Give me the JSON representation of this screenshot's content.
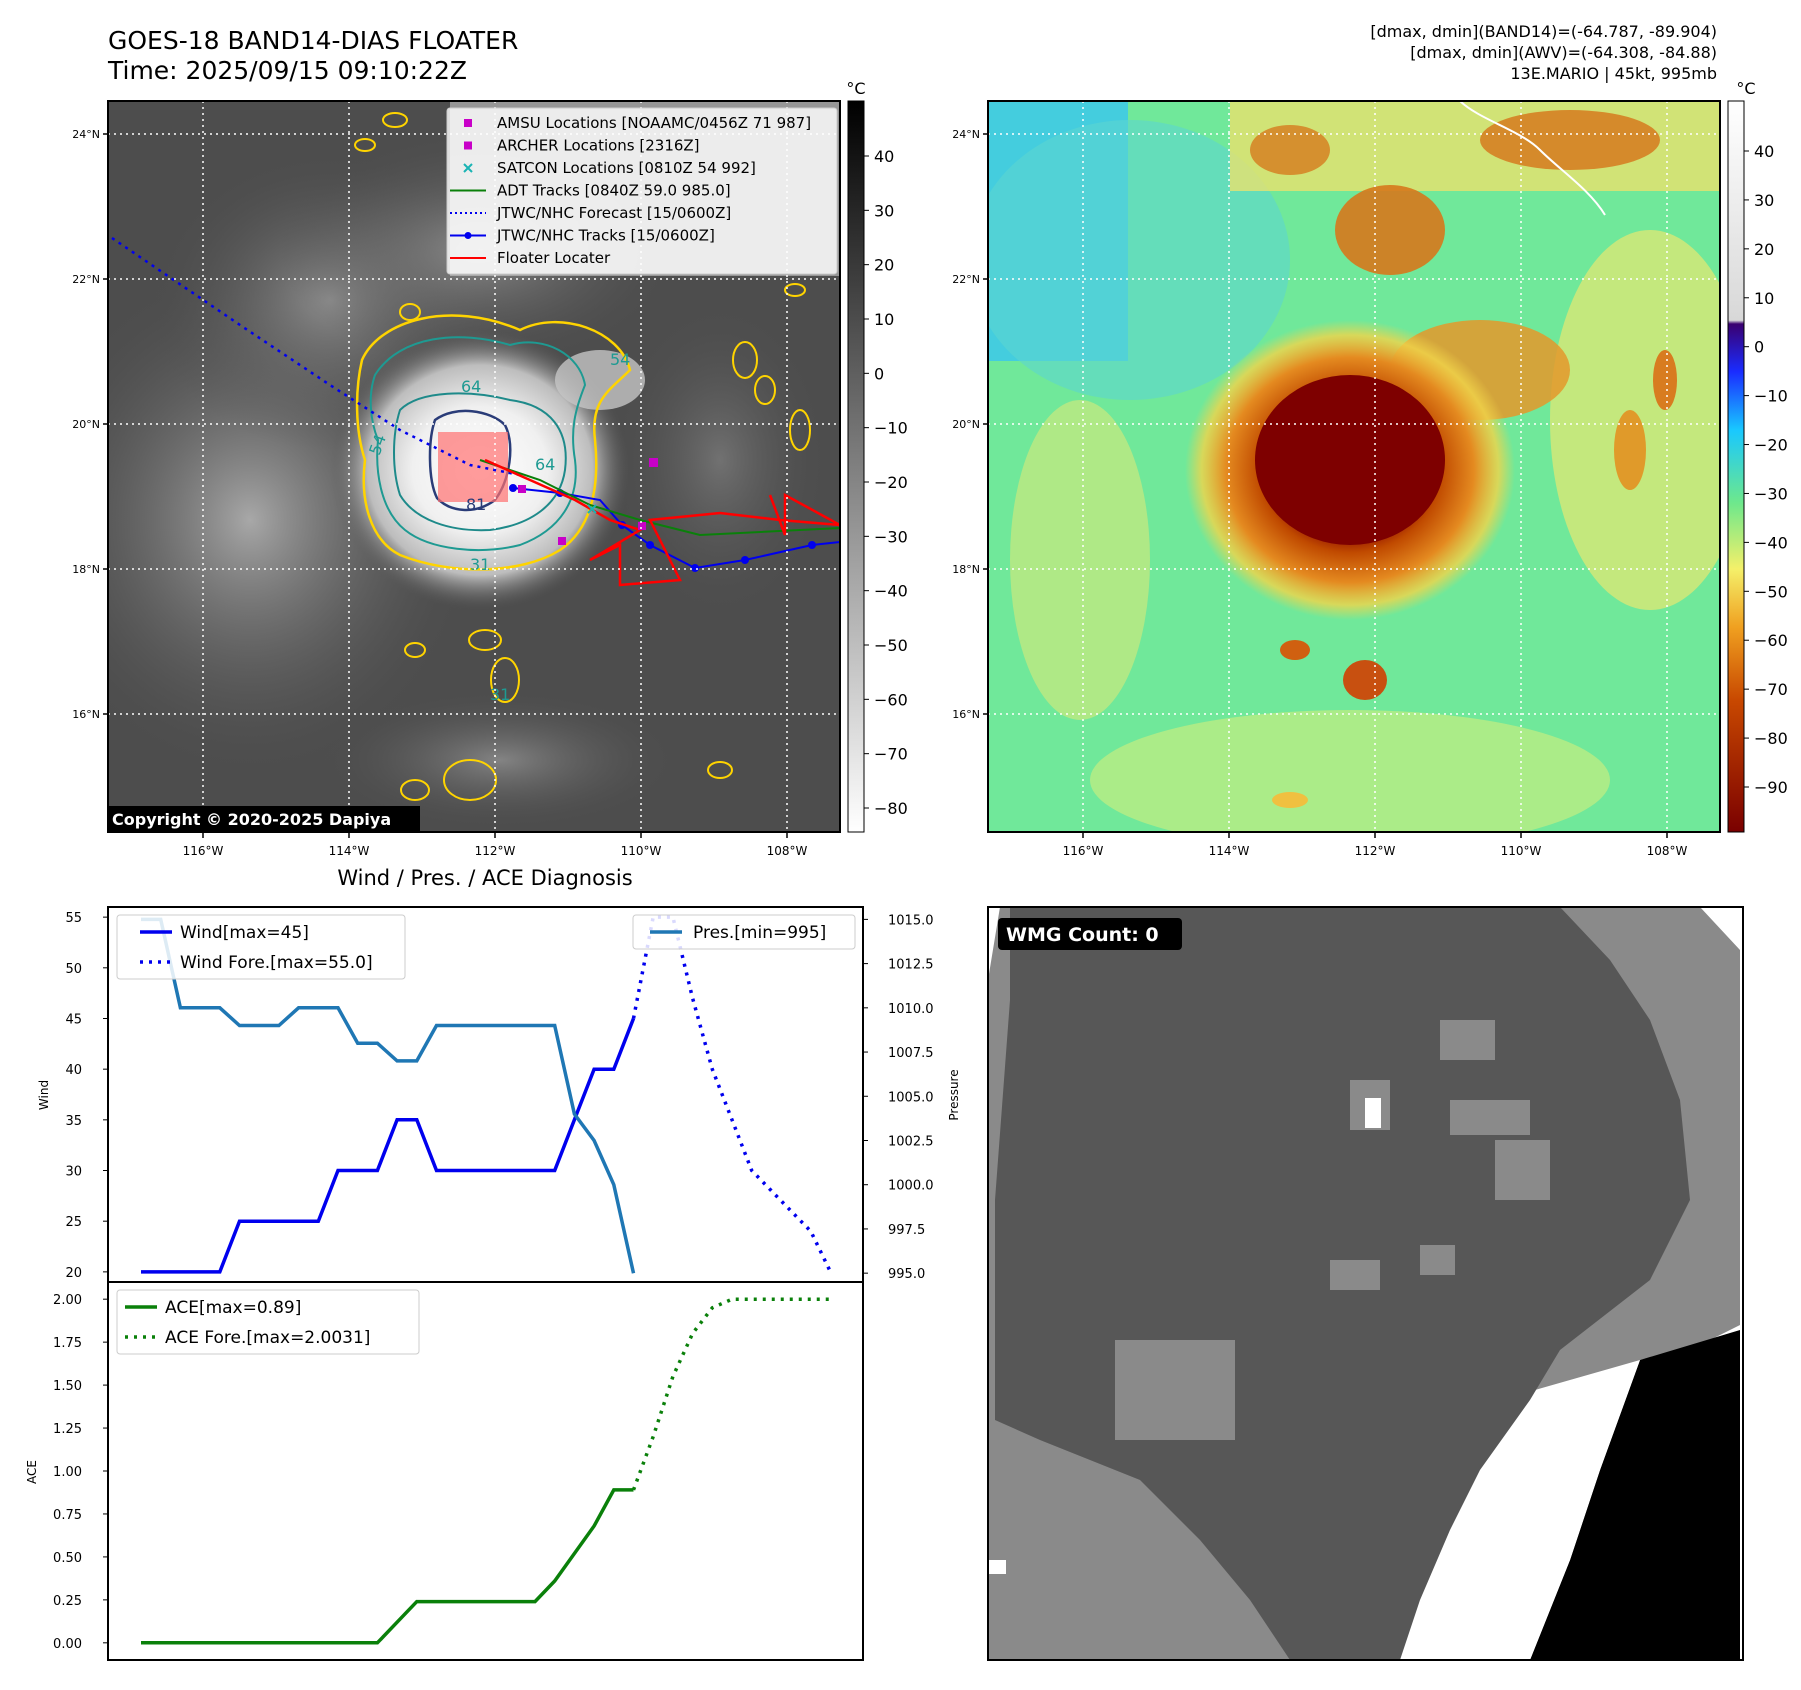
{
  "header": {
    "title_line1": "GOES-18 BAND14-DIAS FLOATER",
    "title_line2": "Time: 2025/09/15 09:10:22Z",
    "stats_line1": "[dmax, dmin](BAND14)=(-64.787, -89.904)",
    "stats_line2": "[dmax, dmin](AWV)=(-64.308, -84.88)",
    "stats_line3": "13E.MARIO | 45kt, 995mb"
  },
  "copyright": "Copyright © 2020-2025 Dapiya",
  "map": {
    "lat_labels": [
      "24°N",
      "22°N",
      "20°N",
      "18°N",
      "16°N"
    ],
    "lon_labels": [
      "116°W",
      "114°W",
      "112°W",
      "110°W",
      "108°W"
    ],
    "unit": "°C",
    "contour_labels": [
      "64",
      "54",
      "64",
      "54",
      "81",
      "31",
      "31"
    ]
  },
  "legend": {
    "items": [
      {
        "label": "AMSU Locations [NOAAMC/0456Z 71 987]",
        "color": "#c800c8",
        "marker": "square"
      },
      {
        "label": "ARCHER Locations [2316Z]",
        "color": "#c800c8",
        "marker": "square"
      },
      {
        "label": "SATCON Locations [0810Z 54 992]",
        "color": "#1ab4b4",
        "marker": "x"
      },
      {
        "label": "ADT Tracks [0840Z 59.0 985.0]",
        "color": "#0a800a",
        "marker": "line"
      },
      {
        "label": "JTWC/NHC Forecast [15/0600Z]",
        "color": "#0000ee",
        "marker": "dotted"
      },
      {
        "label": "JTWC/NHC Tracks [15/0600Z]",
        "color": "#0000ee",
        "marker": "line-dot"
      },
      {
        "label": "Floater Locater",
        "color": "#ff0000",
        "marker": "line"
      }
    ]
  },
  "colorbar_gray": {
    "ticks": [
      40,
      30,
      20,
      10,
      0,
      -10,
      -20,
      -30,
      -40,
      -50,
      -60,
      -70,
      -80
    ],
    "unit": "°C"
  },
  "colorbar_color": {
    "ticks": [
      40,
      30,
      20,
      10,
      0,
      -10,
      -20,
      -30,
      -40,
      -50,
      -60,
      -70,
      -80,
      -90
    ],
    "unit": "°C"
  },
  "wmg": {
    "label": "WMG Count: 0"
  },
  "chart_data": [
    {
      "type": "line",
      "title": "Wind / Pres. / ACE Diagnosis",
      "ylabel": "Wind",
      "y2label": "Pressure",
      "ylim": [
        19,
        56
      ],
      "y2lim": [
        994.5,
        1015.7
      ],
      "yticks": [
        20,
        25,
        30,
        35,
        40,
        45,
        50,
        55
      ],
      "y2ticks": [
        "995.0",
        "997.5",
        "1000.0",
        "1002.5",
        "1005.0",
        "1007.5",
        "1010.0",
        "1012.5",
        "1015.0"
      ],
      "series": [
        {
          "name": "Wind[max=45]",
          "axis": "left",
          "style": "solid",
          "color": "#0000ee",
          "x": [
            0,
            1,
            2,
            3,
            4,
            5,
            6,
            7,
            8,
            9,
            10,
            11,
            12,
            13,
            14,
            15,
            16,
            17,
            18,
            19,
            20,
            21,
            22,
            23,
            24,
            25
          ],
          "values": [
            20,
            20,
            20,
            20,
            20,
            25,
            25,
            25,
            25,
            25,
            30,
            30,
            30,
            35,
            35,
            30,
            30,
            30,
            30,
            30,
            30,
            30,
            35,
            40,
            40,
            45
          ]
        },
        {
          "name": "Wind Fore.[max=55.0]",
          "axis": "left",
          "style": "dotted",
          "color": "#0000ee",
          "x": [
            25,
            26,
            27,
            28,
            29,
            30,
            31,
            32,
            33,
            34,
            35
          ],
          "values": [
            45,
            55,
            55,
            47,
            40,
            35,
            30,
            28,
            26,
            24,
            20
          ]
        },
        {
          "name": "Pres.[min=995]",
          "axis": "right",
          "style": "solid",
          "color": "#1f77b4",
          "x": [
            0,
            1,
            2,
            3,
            4,
            5,
            6,
            7,
            8,
            9,
            10,
            11,
            12,
            13,
            14,
            15,
            16,
            17,
            18,
            19,
            20,
            21,
            22,
            23,
            24,
            25
          ],
          "values": [
            1015,
            1015,
            1010,
            1010,
            1010,
            1009,
            1009,
            1009,
            1010,
            1010,
            1010,
            1008,
            1008,
            1007,
            1007,
            1009,
            1009,
            1009,
            1009,
            1009,
            1009,
            1009,
            1004,
            1002.5,
            1000,
            995
          ]
        }
      ]
    },
    {
      "type": "line",
      "ylabel": "ACE",
      "ylim": [
        -0.1,
        2.1
      ],
      "yticks": [
        "0.00",
        "0.25",
        "0.50",
        "0.75",
        "1.00",
        "1.25",
        "1.50",
        "1.75",
        "2.00"
      ],
      "series": [
        {
          "name": "ACE[max=0.89]",
          "style": "solid",
          "color": "#0a800a",
          "x": [
            0,
            1,
            2,
            3,
            4,
            5,
            6,
            7,
            8,
            9,
            10,
            11,
            12,
            13,
            14,
            15,
            16,
            17,
            18,
            19,
            20,
            21,
            22,
            23,
            24,
            25
          ],
          "values": [
            0,
            0,
            0,
            0,
            0,
            0,
            0,
            0,
            0,
            0,
            0,
            0,
            0,
            0.12,
            0.24,
            0.24,
            0.24,
            0.24,
            0.24,
            0.24,
            0.24,
            0.36,
            0.52,
            0.68,
            0.89,
            0.89
          ]
        },
        {
          "name": "ACE Fore.[max=2.0031]",
          "style": "dotted",
          "color": "#0a800a",
          "x": [
            25,
            26,
            27,
            28,
            29,
            30,
            31,
            32,
            33,
            34,
            35
          ],
          "values": [
            0.89,
            1.2,
            1.55,
            1.8,
            1.95,
            2.0,
            2.0,
            2.0,
            2.0,
            2.0,
            2.0
          ]
        }
      ]
    }
  ]
}
